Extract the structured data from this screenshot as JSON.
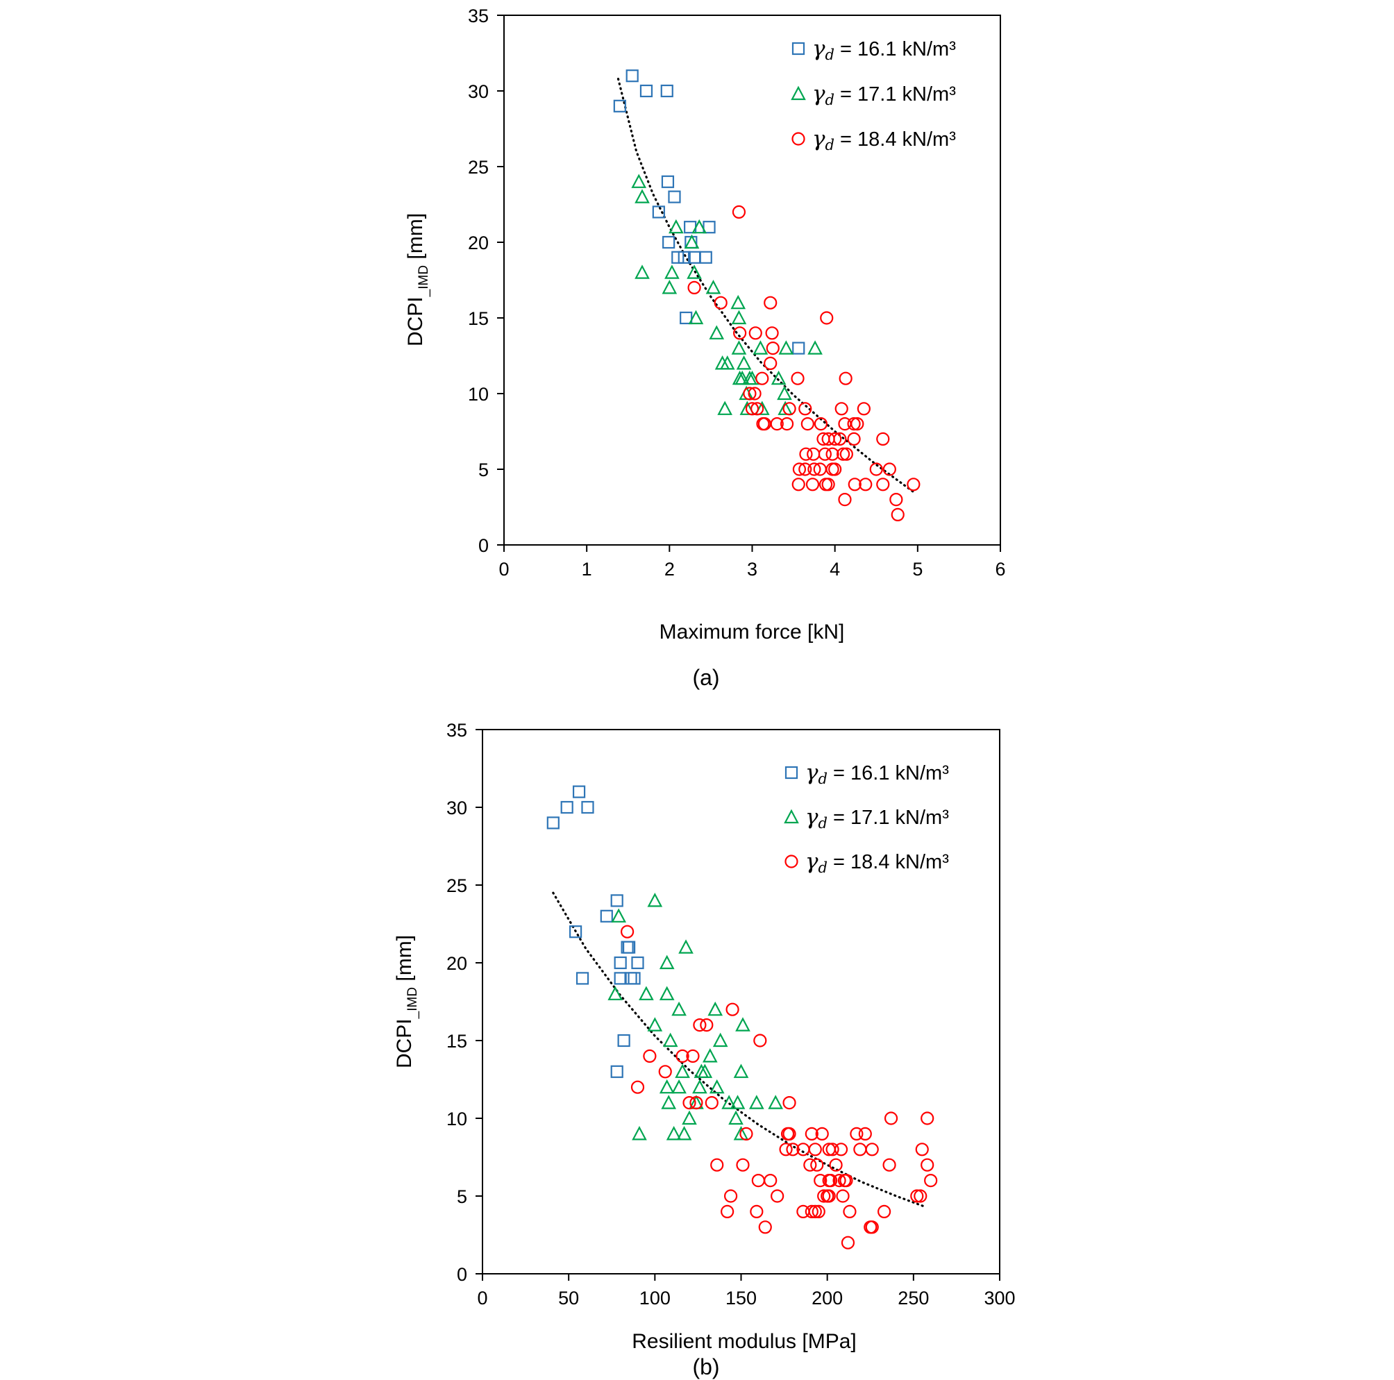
{
  "panels": [
    {
      "caption": "(a)",
      "xlabel": "Maximum force [kN]",
      "ylabel_main": "DCPI",
      "ylabel_sub": "_IMD",
      "ylabel_unit": "[mm]",
      "legend_gamma": "γ",
      "legend_sub": "d",
      "legend": [
        "= 16.1 kN/m³",
        "= 17.1 kN/m³",
        "= 18.4 kN/m³"
      ]
    },
    {
      "caption": "(b)",
      "xlabel": "Resilient modulus [MPa]",
      "ylabel_main": "DCPI",
      "ylabel_sub": "_IMD",
      "ylabel_unit": "[mm]",
      "legend_gamma": "γ",
      "legend_sub": "d",
      "legend": [
        "= 16.1 kN/m³",
        "= 17.1 kN/m³",
        "= 18.4 kN/m³"
      ]
    }
  ],
  "chart_data": [
    {
      "type": "scatter",
      "title": "",
      "xlabel": "Maximum force [kN]",
      "ylabel": "DCPI_IMD [mm]",
      "xlim": [
        0,
        6
      ],
      "ylim": [
        0,
        35
      ],
      "xticks": [
        0,
        1,
        2,
        3,
        4,
        5,
        6
      ],
      "yticks": [
        0,
        5,
        10,
        15,
        20,
        25,
        30,
        35
      ],
      "legend_position": "top-right",
      "grid": false,
      "series": [
        {
          "name": "γd = 16.1 kN/m³",
          "marker": "square",
          "color": "#2e75b6",
          "points": [
            [
              1.4,
              29
            ],
            [
              1.55,
              31
            ],
            [
              1.72,
              30
            ],
            [
              1.97,
              30
            ],
            [
              1.87,
              22
            ],
            [
              1.98,
              24
            ],
            [
              2.06,
              23
            ],
            [
              1.99,
              20
            ],
            [
              2.1,
              19
            ],
            [
              2.18,
              19
            ],
            [
              2.25,
              21
            ],
            [
              2.3,
              19
            ],
            [
              2.44,
              19
            ],
            [
              2.48,
              21
            ],
            [
              2.26,
              20
            ],
            [
              2.2,
              15
            ],
            [
              3.56,
              13
            ]
          ]
        },
        {
          "name": "γd = 17.1 kN/m³",
          "marker": "triangle",
          "color": "#00a550",
          "points": [
            [
              1.63,
              24
            ],
            [
              1.67,
              23
            ],
            [
              1.67,
              18
            ],
            [
              2.0,
              17
            ],
            [
              2.03,
              18
            ],
            [
              2.08,
              21
            ],
            [
              2.27,
              20
            ],
            [
              2.3,
              18
            ],
            [
              2.32,
              15
            ],
            [
              2.36,
              21
            ],
            [
              2.53,
              17
            ],
            [
              2.57,
              14
            ],
            [
              2.64,
              12
            ],
            [
              2.67,
              9
            ],
            [
              2.7,
              12
            ],
            [
              2.83,
              16
            ],
            [
              2.84,
              15
            ],
            [
              2.84,
              13
            ],
            [
              2.85,
              11
            ],
            [
              2.88,
              11
            ],
            [
              2.9,
              12
            ],
            [
              2.93,
              10
            ],
            [
              2.94,
              9
            ],
            [
              2.97,
              11
            ],
            [
              3.0,
              11
            ],
            [
              3.1,
              13
            ],
            [
              3.12,
              9
            ],
            [
              3.32,
              11
            ],
            [
              3.39,
              10
            ],
            [
              3.4,
              9
            ],
            [
              3.41,
              13
            ],
            [
              3.76,
              13
            ]
          ]
        },
        {
          "name": "γd = 18.4 kN/m³",
          "marker": "circle",
          "color": "#ff0000",
          "points": [
            [
              2.84,
              22
            ],
            [
              2.3,
              17
            ],
            [
              2.62,
              16
            ],
            [
              2.85,
              14
            ],
            [
              3.22,
              16
            ],
            [
              3.04,
              14
            ],
            [
              3.24,
              14
            ],
            [
              3.25,
              13
            ],
            [
              3.22,
              12
            ],
            [
              3.12,
              11
            ],
            [
              3.9,
              15
            ],
            [
              3.55,
              11
            ],
            [
              4.13,
              11
            ],
            [
              2.97,
              10
            ],
            [
              3.03,
              10
            ],
            [
              3.0,
              9
            ],
            [
              3.06,
              9
            ],
            [
              3.13,
              8
            ],
            [
              3.15,
              8
            ],
            [
              3.3,
              8
            ],
            [
              3.42,
              8
            ],
            [
              3.45,
              9
            ],
            [
              3.64,
              9
            ],
            [
              3.67,
              8
            ],
            [
              3.83,
              8
            ],
            [
              4.08,
              9
            ],
            [
              4.35,
              9
            ],
            [
              4.12,
              8
            ],
            [
              4.23,
              8
            ],
            [
              4.27,
              8
            ],
            [
              3.86,
              7
            ],
            [
              3.92,
              7
            ],
            [
              4.0,
              7
            ],
            [
              4.06,
              7
            ],
            [
              4.23,
              7
            ],
            [
              4.58,
              7
            ],
            [
              3.65,
              6
            ],
            [
              3.74,
              6
            ],
            [
              3.88,
              6
            ],
            [
              3.97,
              6
            ],
            [
              4.1,
              6
            ],
            [
              4.14,
              6
            ],
            [
              3.57,
              5
            ],
            [
              3.64,
              5
            ],
            [
              3.75,
              5
            ],
            [
              3.82,
              5
            ],
            [
              3.97,
              5
            ],
            [
              4.0,
              5
            ],
            [
              4.5,
              5
            ],
            [
              4.66,
              5
            ],
            [
              3.56,
              4
            ],
            [
              3.73,
              4
            ],
            [
              3.89,
              4
            ],
            [
              3.92,
              4
            ],
            [
              4.24,
              4
            ],
            [
              4.37,
              4
            ],
            [
              4.58,
              4
            ],
            [
              4.95,
              4
            ],
            [
              4.12,
              3
            ],
            [
              4.74,
              3
            ],
            [
              4.76,
              2
            ]
          ]
        }
      ],
      "trendline": {
        "style": "dotted",
        "color": "#000000",
        "x": [
          1.38,
          1.6,
          1.8,
          2.0,
          2.2,
          2.5,
          2.8,
          3.1,
          3.5,
          4.0,
          4.5,
          4.95
        ],
        "y": [
          30.8,
          26.0,
          23.2,
          21.0,
          19.0,
          16.4,
          14.1,
          12.1,
          9.9,
          7.5,
          5.3,
          3.5
        ]
      }
    },
    {
      "type": "scatter",
      "title": "",
      "xlabel": "Resilient modulus [MPa]",
      "ylabel": "DCPI_IMD [mm]",
      "xlim": [
        0,
        300
      ],
      "ylim": [
        0,
        35
      ],
      "xticks": [
        0,
        50,
        100,
        150,
        200,
        250,
        300
      ],
      "yticks": [
        0,
        5,
        10,
        15,
        20,
        25,
        30,
        35
      ],
      "legend_position": "top-right",
      "grid": false,
      "series": [
        {
          "name": "γd = 16.1 kN/m³",
          "marker": "square",
          "color": "#2e75b6",
          "points": [
            [
              41,
              29
            ],
            [
              49,
              30
            ],
            [
              56,
              31
            ],
            [
              61,
              30
            ],
            [
              54,
              22
            ],
            [
              58,
              19
            ],
            [
              72,
              23
            ],
            [
              78,
              24
            ],
            [
              80,
              20
            ],
            [
              80,
              19
            ],
            [
              84,
              21
            ],
            [
              85,
              21
            ],
            [
              86,
              19
            ],
            [
              88,
              19
            ],
            [
              90,
              20
            ],
            [
              82,
              15
            ],
            [
              78,
              13
            ]
          ]
        },
        {
          "name": "γd = 17.1 kN/m³",
          "marker": "triangle",
          "color": "#00a550",
          "points": [
            [
              79,
              23
            ],
            [
              100,
              24
            ],
            [
              77,
              18
            ],
            [
              95,
              18
            ],
            [
              100,
              16
            ],
            [
              107,
              20
            ],
            [
              107,
              18
            ],
            [
              107,
              12
            ],
            [
              108,
              11
            ],
            [
              109,
              15
            ],
            [
              114,
              17
            ],
            [
              114,
              12
            ],
            [
              116,
              13
            ],
            [
              118,
              21
            ],
            [
              120,
              10
            ],
            [
              124,
              11
            ],
            [
              126,
              12
            ],
            [
              127,
              13
            ],
            [
              129,
              13
            ],
            [
              132,
              14
            ],
            [
              135,
              17
            ],
            [
              136,
              12
            ],
            [
              138,
              15
            ],
            [
              143,
              11
            ],
            [
              148,
              11
            ],
            [
              147,
              10
            ],
            [
              150,
              13
            ],
            [
              151,
              16
            ],
            [
              150,
              9
            ],
            [
              159,
              11
            ],
            [
              170,
              11
            ],
            [
              91,
              9
            ],
            [
              111,
              9
            ],
            [
              117,
              9
            ]
          ]
        },
        {
          "name": "γd = 18.4 kN/m³",
          "marker": "circle",
          "color": "#ff0000",
          "points": [
            [
              84,
              22
            ],
            [
              145,
              17
            ],
            [
              126,
              16
            ],
            [
              130,
              16
            ],
            [
              161,
              15
            ],
            [
              97,
              14
            ],
            [
              116,
              14
            ],
            [
              122,
              14
            ],
            [
              106,
              13
            ],
            [
              90,
              12
            ],
            [
              120,
              11
            ],
            [
              124,
              11
            ],
            [
              133,
              11
            ],
            [
              153,
              9
            ],
            [
              178,
              11
            ],
            [
              177,
              9
            ],
            [
              178,
              9
            ],
            [
              176,
              8
            ],
            [
              180,
              8
            ],
            [
              186,
              8
            ],
            [
              191,
              9
            ],
            [
              197,
              9
            ],
            [
              193,
              8
            ],
            [
              201,
              8
            ],
            [
              203,
              8
            ],
            [
              208,
              8
            ],
            [
              217,
              9
            ],
            [
              222,
              9
            ],
            [
              237,
              10
            ],
            [
              258,
              10
            ],
            [
              219,
              8
            ],
            [
              226,
              8
            ],
            [
              255,
              8
            ],
            [
              136,
              7
            ],
            [
              151,
              7
            ],
            [
              190,
              7
            ],
            [
              194,
              7
            ],
            [
              205,
              7
            ],
            [
              236,
              7
            ],
            [
              258,
              7
            ],
            [
              160,
              6
            ],
            [
              167,
              6
            ],
            [
              196,
              6
            ],
            [
              201,
              6
            ],
            [
              202,
              6
            ],
            [
              207,
              6
            ],
            [
              210,
              6
            ],
            [
              211,
              6
            ],
            [
              260,
              6
            ],
            [
              144,
              5
            ],
            [
              171,
              5
            ],
            [
              198,
              5
            ],
            [
              200,
              5
            ],
            [
              201,
              5
            ],
            [
              209,
              5
            ],
            [
              252,
              5
            ],
            [
              254,
              5
            ],
            [
              142,
              4
            ],
            [
              159,
              4
            ],
            [
              186,
              4
            ],
            [
              191,
              4
            ],
            [
              193,
              4
            ],
            [
              195,
              4
            ],
            [
              213,
              4
            ],
            [
              233,
              4
            ],
            [
              164,
              3
            ],
            [
              225,
              3
            ],
            [
              226,
              3
            ],
            [
              212,
              2
            ]
          ]
        }
      ],
      "trendline": {
        "style": "dotted",
        "color": "#000000",
        "x": [
          41,
          60,
          80,
          100,
          120,
          140,
          160,
          180,
          200,
          220,
          240,
          257
        ],
        "y": [
          24.5,
          20.9,
          17.9,
          15.3,
          13.1,
          11.2,
          9.6,
          8.2,
          7.0,
          5.9,
          5.0,
          4.3
        ]
      }
    }
  ]
}
